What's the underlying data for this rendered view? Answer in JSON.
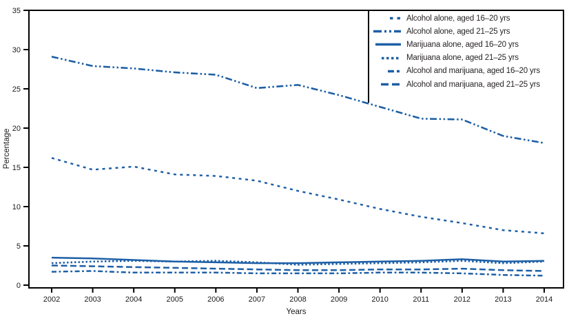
{
  "chart_data": {
    "type": "line",
    "title": "",
    "xlabel": "Years",
    "ylabel": "Percentage",
    "x": [
      2002,
      2003,
      2004,
      2005,
      2006,
      2007,
      2008,
      2009,
      2010,
      2011,
      2012,
      2013,
      2014
    ],
    "ylim": [
      0,
      35
    ],
    "yticks": [
      0,
      5,
      10,
      15,
      20,
      25,
      30,
      35
    ],
    "grid": false,
    "legend_position": "top-right",
    "series": [
      {
        "name": "Alcohol alone, aged 16–20 yrs",
        "style": "sparse-dash",
        "values": [
          16.2,
          14.7,
          15.1,
          14.1,
          13.9,
          13.3,
          12.0,
          10.9,
          9.7,
          8.7,
          7.9,
          7.0,
          6.6
        ]
      },
      {
        "name": "Alcohol alone, aged 21–25 yrs",
        "style": "dash-dot-dot",
        "values": [
          29.1,
          27.9,
          27.6,
          27.1,
          26.8,
          25.1,
          25.5,
          24.2,
          22.7,
          21.2,
          21.1,
          19.0,
          18.1
        ]
      },
      {
        "name": "Marijuana alone, aged 16–20 yrs",
        "style": "solid",
        "values": [
          3.5,
          3.4,
          3.2,
          3.0,
          2.9,
          2.8,
          2.8,
          2.9,
          3.0,
          3.1,
          3.3,
          3.0,
          3.1
        ]
      },
      {
        "name": "Marijuana alone, aged 21–25 yrs",
        "style": "dot",
        "values": [
          2.8,
          3.0,
          3.1,
          3.0,
          3.1,
          2.9,
          2.6,
          2.7,
          2.8,
          2.9,
          3.1,
          2.8,
          3.0
        ]
      },
      {
        "name": "Alcohol and marijuana, aged 16–20 yrs",
        "style": "dash-dot",
        "values": [
          1.7,
          1.8,
          1.6,
          1.6,
          1.6,
          1.5,
          1.5,
          1.5,
          1.6,
          1.6,
          1.5,
          1.3,
          1.2
        ]
      },
      {
        "name": "Alcohol and marijuana, aged 21–25 yrs",
        "style": "long-dash",
        "values": [
          2.5,
          2.4,
          2.3,
          2.2,
          2.1,
          2.0,
          1.9,
          1.9,
          2.0,
          2.0,
          2.1,
          1.9,
          1.8
        ]
      }
    ]
  },
  "colors": {
    "line": "#1d5fa6",
    "axis": "#000000",
    "text": "#231f20"
  }
}
